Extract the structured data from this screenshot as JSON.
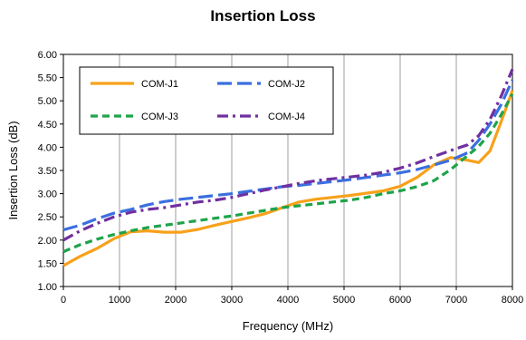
{
  "chart_data": {
    "type": "line",
    "title": "Insertion Loss",
    "xlabel": "Frequency (MHz)",
    "ylabel": "Insertion Loss (dB)",
    "xlim": [
      0,
      8000
    ],
    "ylim": [
      1.0,
      6.0
    ],
    "x_ticks": [
      "0",
      "1000",
      "2000",
      "3000",
      "4000",
      "5000",
      "6000",
      "7000",
      "8000"
    ],
    "y_ticks": [
      "1.00",
      "1.50",
      "2.00",
      "2.50",
      "3.00",
      "3.50",
      "4.00",
      "4.50",
      "5.00",
      "5.50",
      "6.00"
    ],
    "grid": "vertical",
    "legend_position": "top-left",
    "series": [
      {
        "name": "COM-J1",
        "color": "#F7A11A",
        "dash": "solid",
        "x": [
          0,
          300,
          600,
          900,
          1200,
          1500,
          1800,
          2100,
          2400,
          2700,
          3000,
          3300,
          3600,
          3900,
          4200,
          4500,
          4800,
          5100,
          5400,
          5700,
          6000,
          6300,
          6600,
          6900,
          7200,
          7400,
          7600,
          7800,
          8000
        ],
        "y": [
          1.45,
          1.65,
          1.82,
          2.03,
          2.18,
          2.2,
          2.17,
          2.17,
          2.23,
          2.32,
          2.4,
          2.48,
          2.57,
          2.7,
          2.82,
          2.88,
          2.92,
          2.96,
          3.01,
          3.06,
          3.16,
          3.35,
          3.62,
          3.78,
          3.72,
          3.67,
          3.92,
          4.55,
          5.22
        ]
      },
      {
        "name": "COM-J2",
        "color": "#3B6FE0",
        "dash": "long-dash",
        "x": [
          0,
          300,
          600,
          900,
          1200,
          1500,
          1800,
          2100,
          2400,
          2700,
          3000,
          3300,
          3600,
          3900,
          4200,
          4500,
          4800,
          5100,
          5400,
          5700,
          6000,
          6300,
          6600,
          6900,
          7200,
          7400,
          7600,
          7800,
          8000
        ],
        "y": [
          2.22,
          2.32,
          2.46,
          2.58,
          2.66,
          2.76,
          2.83,
          2.88,
          2.92,
          2.96,
          3.0,
          3.05,
          3.1,
          3.15,
          3.18,
          3.22,
          3.26,
          3.3,
          3.35,
          3.4,
          3.45,
          3.52,
          3.62,
          3.72,
          3.88,
          4.15,
          4.5,
          4.92,
          5.45
        ]
      },
      {
        "name": "COM-J3",
        "color": "#1FA34A",
        "dash": "dashed",
        "x": [
          0,
          300,
          600,
          900,
          1200,
          1500,
          1800,
          2100,
          2400,
          2700,
          3000,
          3300,
          3600,
          3900,
          4200,
          4500,
          4800,
          5100,
          5400,
          5700,
          6000,
          6300,
          6600,
          6900,
          7200,
          7400,
          7600,
          7800,
          8000
        ],
        "y": [
          1.75,
          1.9,
          2.02,
          2.12,
          2.2,
          2.27,
          2.32,
          2.37,
          2.42,
          2.47,
          2.52,
          2.58,
          2.64,
          2.7,
          2.74,
          2.78,
          2.82,
          2.86,
          2.92,
          3.0,
          3.06,
          3.15,
          3.28,
          3.52,
          3.82,
          4.02,
          4.3,
          4.7,
          5.15
        ]
      },
      {
        "name": "COM-J4",
        "color": "#7030A0",
        "dash": "dash-dot",
        "x": [
          0,
          300,
          600,
          900,
          1200,
          1500,
          1800,
          2100,
          2400,
          2700,
          3000,
          3300,
          3600,
          3900,
          4200,
          4500,
          4800,
          5100,
          5400,
          5700,
          6000,
          6300,
          6600,
          6900,
          7200,
          7400,
          7600,
          7800,
          8000
        ],
        "y": [
          2.0,
          2.2,
          2.36,
          2.5,
          2.6,
          2.66,
          2.7,
          2.76,
          2.82,
          2.86,
          2.92,
          3.0,
          3.08,
          3.15,
          3.22,
          3.28,
          3.32,
          3.36,
          3.4,
          3.46,
          3.55,
          3.66,
          3.8,
          3.93,
          4.05,
          4.25,
          4.6,
          5.1,
          5.68
        ]
      }
    ]
  }
}
